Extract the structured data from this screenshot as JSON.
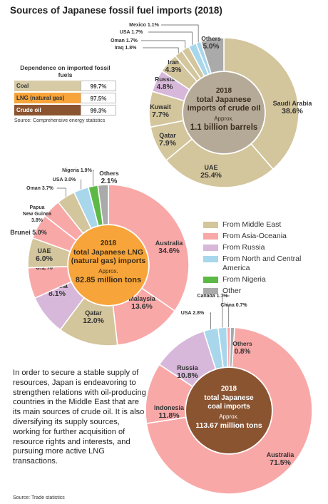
{
  "title": "Sources of Japanese fossil fuel imports (2018)",
  "colors": {
    "middle_east": "#d3c59c",
    "asia_oceania": "#f9a8a8",
    "russia": "#d7b8da",
    "north_central_america": "#a8d7ec",
    "nigeria": "#5cb946",
    "other": "#aaaaaa",
    "crude_center": "#b5aa98",
    "lng_center": "#f7a53a",
    "coal_center": "#8a5431"
  },
  "dependence": {
    "title": "Dependence on imported fossil fuels",
    "rows": [
      {
        "name": "Coal",
        "value": "99.7%",
        "color": "#d7cba6",
        "text_color": "#333333"
      },
      {
        "name": "LNG (natural gas)",
        "value": "97.5%",
        "color": "#f7a53a",
        "text_color": "#333333"
      },
      {
        "name": "Crude oil",
        "value": "99.3%",
        "color": "#8a5431",
        "text_color": "#ffffff"
      }
    ],
    "source": "Source: Comprehensive energy statistics"
  },
  "legend": [
    {
      "label": "From Middle East",
      "color": "#d3c59c"
    },
    {
      "label": "From Asia-Oceania",
      "color": "#f9a8a8"
    },
    {
      "label": "From Russia",
      "color": "#d7b8da"
    },
    {
      "label": "From North and Central America",
      "color": "#a8d7ec"
    },
    {
      "label": "From Nigeria",
      "color": "#5cb946"
    },
    {
      "label": "Other",
      "color": "#aaaaaa"
    }
  ],
  "footer_text": "In order to secure a stable supply of resources, Japan is endeavoring to strengthen relations with oil-producing countries in the Middle East that are its main sources of crude oil. It is also diversifying its supply sources, working for further acquisition of resource rights and interests, and pursuing more active LNG transactions.",
  "footer_source": "Source: Trade statistics",
  "chart_data": [
    {
      "type": "pie",
      "subtype": "donut",
      "title": "2018 total Japanese imports of crude oil",
      "center_lines": [
        "2018",
        "total Japanese",
        "imports of crude oil"
      ],
      "center_note": "Approx.",
      "center_value": "1.1 billion barrels",
      "center_color": "#b5aa98",
      "slices": [
        {
          "label": "Saudi Arabia",
          "value": 38.6,
          "value_text": "38.6%",
          "group": "middle_east"
        },
        {
          "label": "UAE",
          "value": 25.4,
          "value_text": "25.4%",
          "group": "middle_east"
        },
        {
          "label": "Qatar",
          "value": 7.9,
          "value_text": "7.9%",
          "group": "middle_east"
        },
        {
          "label": "Kuwait",
          "value": 7.7,
          "value_text": "7.7%",
          "group": "middle_east"
        },
        {
          "label": "Russia",
          "value": 4.8,
          "value_text": "4.8%",
          "group": "russia"
        },
        {
          "label": "Iran",
          "value": 4.3,
          "value_text": "4.3%",
          "group": "middle_east"
        },
        {
          "label": "Iraq",
          "value": 1.8,
          "value_text": "1.8%",
          "group": "middle_east"
        },
        {
          "label": "Oman",
          "value": 1.7,
          "value_text": "1.7%",
          "group": "middle_east"
        },
        {
          "label": "USA",
          "value": 1.7,
          "value_text": "1.7%",
          "group": "north_central_america"
        },
        {
          "label": "Mexico",
          "value": 1.1,
          "value_text": "1.1%",
          "group": "north_central_america"
        },
        {
          "label": "Others",
          "value": 5.0,
          "value_text": "5.0%",
          "group": "other"
        }
      ]
    },
    {
      "type": "pie",
      "subtype": "donut",
      "title": "2018 total Japanese LNG (natural gas) imports",
      "center_lines": [
        "2018",
        "total Japanese LNG",
        "(natural gas) imports"
      ],
      "center_note": "Approx.",
      "center_value": "82.85 million tons",
      "center_color": "#f7a53a",
      "slices": [
        {
          "label": "Australia",
          "value": 34.6,
          "value_text": "34.6%",
          "group": "asia_oceania"
        },
        {
          "label": "Malaysia",
          "value": 13.6,
          "value_text": "13.6%",
          "group": "asia_oceania"
        },
        {
          "label": "Qatar",
          "value": 12.0,
          "value_text": "12.0%",
          "group": "middle_east"
        },
        {
          "label": "Russia",
          "value": 8.1,
          "value_text": "8.1%",
          "group": "russia"
        },
        {
          "label": "Indonesia",
          "value": 6.2,
          "value_text": "6.2%",
          "group": "asia_oceania"
        },
        {
          "label": "UAE",
          "value": 6.0,
          "value_text": "6.0%",
          "group": "middle_east"
        },
        {
          "label": "Brunei",
          "value": 5.0,
          "value_text": "5.0%",
          "group": "asia_oceania"
        },
        {
          "label": "Papua New Guinea",
          "value": 3.8,
          "value_text": "3.8%",
          "group": "asia_oceania"
        },
        {
          "label": "Oman",
          "value": 3.7,
          "value_text": "3.7%",
          "group": "middle_east"
        },
        {
          "label": "USA",
          "value": 3.0,
          "value_text": "3.0%",
          "group": "north_central_america"
        },
        {
          "label": "Nigeria",
          "value": 1.9,
          "value_text": "1.9%",
          "group": "nigeria"
        },
        {
          "label": "Others",
          "value": 2.1,
          "value_text": "2.1%",
          "group": "other"
        }
      ]
    },
    {
      "type": "pie",
      "subtype": "donut",
      "title": "2018 total Japanese coal imports",
      "center_lines": [
        "2018",
        "total Japanese",
        "coal imports"
      ],
      "center_note": "Approx.",
      "center_value": "113.67 million tons",
      "center_color": "#8a5431",
      "slices": [
        {
          "label": "Australia",
          "value": 71.5,
          "value_text": "71.5%",
          "group": "asia_oceania"
        },
        {
          "label": "Indonesia",
          "value": 11.8,
          "value_text": "11.8%",
          "group": "asia_oceania"
        },
        {
          "label": "Russia",
          "value": 10.8,
          "value_text": "10.8%",
          "group": "russia"
        },
        {
          "label": "USA",
          "value": 2.8,
          "value_text": "2.8%",
          "group": "north_central_america"
        },
        {
          "label": "Canada",
          "value": 1.7,
          "value_text": "1.7%",
          "group": "north_central_america"
        },
        {
          "label": "China",
          "value": 0.7,
          "value_text": "0.7%",
          "group": "asia_oceania"
        },
        {
          "label": "Others",
          "value": 0.8,
          "value_text": "0.8%",
          "group": "other"
        }
      ]
    }
  ]
}
